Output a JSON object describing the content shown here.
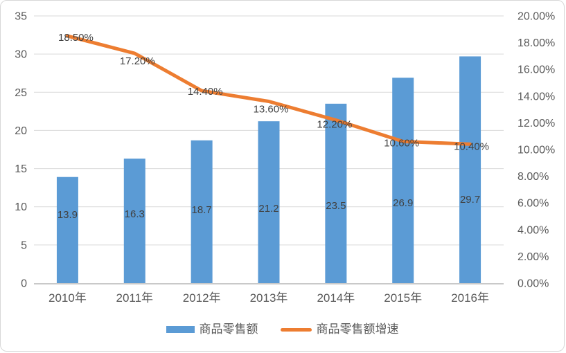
{
  "chart_data": {
    "type": "combo-bar-line",
    "categories": [
      "2010年",
      "2011年",
      "2012年",
      "2013年",
      "2014年",
      "2015年",
      "2016年"
    ],
    "series": [
      {
        "name": "商品零售额",
        "type": "bar",
        "values": [
          13.9,
          16.3,
          18.7,
          21.2,
          23.5,
          26.9,
          29.7
        ],
        "labels": [
          "13.9",
          "16.3",
          "18.7",
          "21.2",
          "23.5",
          "26.9",
          "29.7"
        ],
        "color": "#5B9BD5",
        "axis": "left"
      },
      {
        "name": "商品零售额增速",
        "type": "line",
        "values": [
          18.5,
          17.2,
          14.4,
          13.6,
          12.2,
          10.6,
          10.4
        ],
        "labels": [
          "18.50%",
          "17.20%",
          "14.40%",
          "13.60%",
          "12.20%",
          "10.60%",
          "10.40%"
        ],
        "color": "#ED7D31",
        "axis": "right"
      }
    ],
    "left_axis": {
      "min": 0,
      "max": 35,
      "step": 5,
      "ticks": [
        "35",
        "30",
        "25",
        "20",
        "15",
        "10",
        "5",
        "0"
      ]
    },
    "right_axis": {
      "min": 0,
      "max": 20,
      "step": 2,
      "ticks": [
        "20.00%",
        "18.00%",
        "16.00%",
        "14.00%",
        "12.00%",
        "10.00%",
        "8.00%",
        "6.00%",
        "4.00%",
        "2.00%",
        "0.00%"
      ]
    },
    "grid": true,
    "legend_position": "bottom",
    "title": "",
    "colors": {
      "bar": "#5B9BD5",
      "line": "#ED7D31",
      "gridline": "#D9D9D9",
      "axis_line": "#C9C9C9",
      "tick_text": "#595959",
      "data_label_text": "#404040"
    }
  }
}
